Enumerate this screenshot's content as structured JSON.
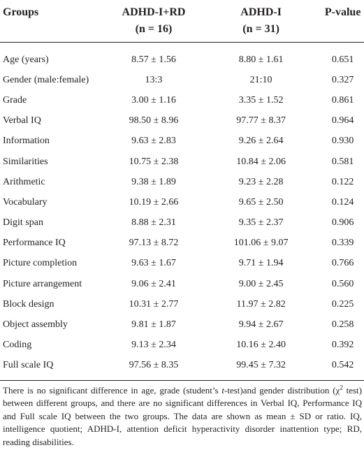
{
  "table": {
    "header": [
      {
        "main": "Groups",
        "sub": null
      },
      {
        "main": "ADHD-I+RD",
        "sub": "(n = 16)"
      },
      {
        "main": "ADHD-I",
        "sub": "(n = 31)"
      },
      {
        "main": "P-value",
        "sub": null
      }
    ],
    "rows": [
      [
        "Age (years)",
        "8.57 ± 1.56",
        "8.80 ± 1.61",
        "0.651"
      ],
      [
        "Gender (male:female)",
        "13:3",
        "21:10",
        "0.327"
      ],
      [
        "Grade",
        "3.00 ± 1.16",
        "3.35 ± 1.52",
        "0.861"
      ],
      [
        "Verbal IQ",
        "98.50 ± 8.96",
        "97.77 ± 8.37",
        "0.964"
      ],
      [
        "Information",
        "9.63 ± 2.83",
        "9.26 ± 2.64",
        "0.930"
      ],
      [
        "Similarities",
        "10.75 ± 2.38",
        "10.84 ± 2.06",
        "0.581"
      ],
      [
        "Arithmetic",
        "9.38 ± 1.89",
        "9.23 ± 2.28",
        "0.122"
      ],
      [
        "Vocabulary",
        "10.19 ± 2.66",
        "9.65 ± 2.50",
        "0.124"
      ],
      [
        "Digit span",
        "8.88 ± 2.31",
        "9.35 ± 2.37",
        "0.906"
      ],
      [
        "Performance IQ",
        "97.13 ± 8.72",
        "101.06 ± 9.07",
        "0.339"
      ],
      [
        "Picture completion",
        "9.63 ± 1.67",
        "9.71 ± 1.94",
        "0.766"
      ],
      [
        "Picture arrangement",
        "9.06 ± 2.41",
        "9.00 ± 2.45",
        "0.560"
      ],
      [
        "Block design",
        "10.31 ± 2.77",
        "11.97 ± 2.82",
        "0.225"
      ],
      [
        "Object assembly",
        "9.81 ± 1.87",
        "9.94 ± 2.67",
        "0.258"
      ],
      [
        "Coding",
        "9.13 ± 2.34",
        "10.16 ± 2.40",
        "0.392"
      ],
      [
        "Full scale IQ",
        "97.56 ± 8.35",
        "99.45 ± 7.32",
        "0.542"
      ]
    ]
  },
  "footnote": [
    {
      "text": "There is no significant difference in age, grade (student’s ",
      "style": "normal"
    },
    {
      "text": "t",
      "style": "italic"
    },
    {
      "text": "-test)and gender distribution (χ",
      "style": "normal"
    },
    {
      "text": "2",
      "style": "sup"
    },
    {
      "text": " test) between different groups, and there are no significant differences in Verbal IQ, Performance IQ and Full scale IQ between the two groups. The data are shown as mean ± SD or ratio. IQ, intelligence quotient; ADHD-I, attention deficit hyperactivity disorder inattention type; RD, reading disabilities.",
      "style": "normal"
    }
  ]
}
